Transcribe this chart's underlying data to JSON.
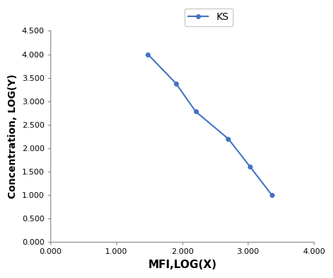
{
  "x": [
    1.477,
    1.903,
    2.204,
    2.699,
    3.033,
    3.362
  ],
  "y": [
    4.0,
    3.38,
    2.78,
    2.2,
    1.6,
    1.0
  ],
  "line_color": "#4472C4",
  "marker": "o",
  "marker_size": 4,
  "line_width": 1.5,
  "legend_label": "KS",
  "xlabel": "MFI,LOG(X)",
  "ylabel": "Concentration, LOG(Y)",
  "xlim": [
    0.0,
    4.0
  ],
  "ylim": [
    0.0,
    4.5
  ],
  "xticks": [
    0.0,
    1.0,
    2.0,
    3.0,
    4.0
  ],
  "yticks": [
    0.0,
    0.5,
    1.0,
    1.5,
    2.0,
    2.5,
    3.0,
    3.5,
    4.0,
    4.5
  ],
  "xlabel_fontsize": 11,
  "ylabel_fontsize": 10,
  "tick_fontsize": 8,
  "legend_fontsize": 10,
  "background_color": "#ffffff"
}
